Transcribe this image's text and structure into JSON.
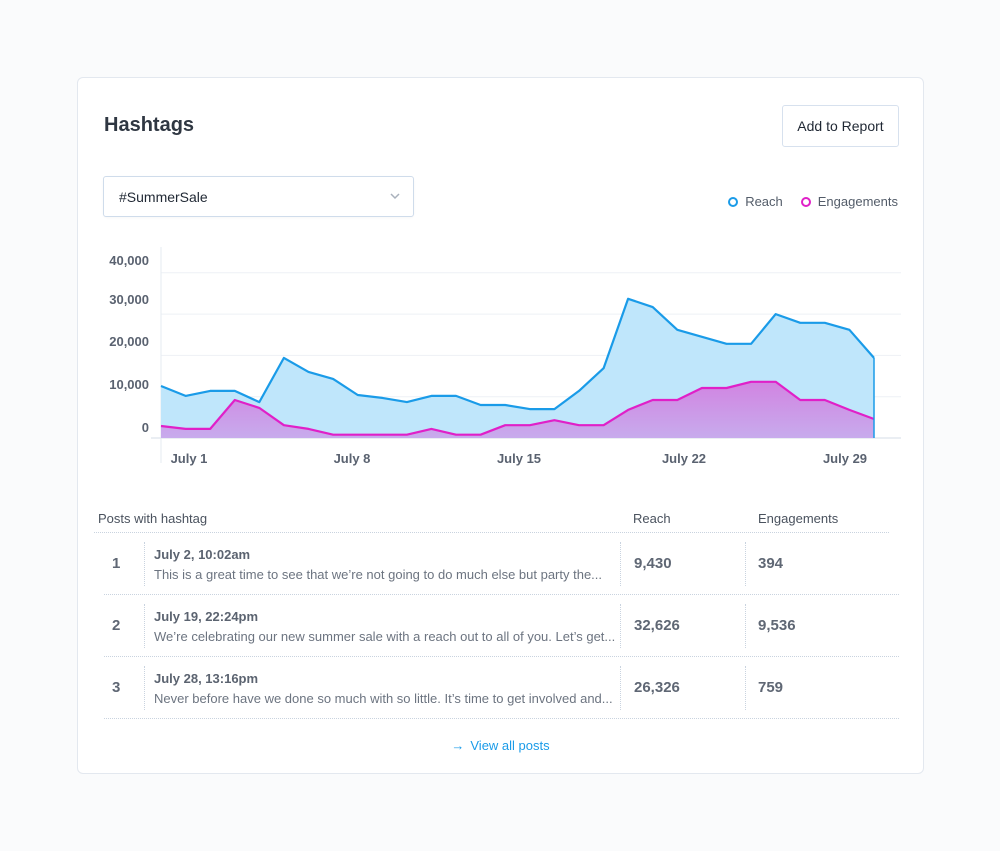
{
  "header": {
    "title": "Hashtags",
    "add_button": "Add to Report"
  },
  "hashtag_select": {
    "value": "#SummerSale",
    "icon": "chevron-down-icon"
  },
  "legend": [
    {
      "label": "Reach",
      "color": "#1a9be8"
    },
    {
      "label": "Engagements",
      "color": "#e020c8"
    }
  ],
  "chart_data": {
    "type": "area",
    "title": "",
    "xlabel": "",
    "ylabel": "",
    "ylim": [
      0,
      40000
    ],
    "y_ticks": [
      "40,000",
      "30,000",
      "20,000",
      "10,000",
      "0"
    ],
    "x_ticks": [
      "July 1",
      "July 8",
      "July 15",
      "July 22",
      "July 29"
    ],
    "grid": true,
    "legend_position": "top-right",
    "x": [
      "Jul 1",
      "Jul 2",
      "Jul 3",
      "Jul 4",
      "Jul 5",
      "Jul 6",
      "Jul 7",
      "Jul 8",
      "Jul 9",
      "Jul 10",
      "Jul 11",
      "Jul 12",
      "Jul 13",
      "Jul 14",
      "Jul 15",
      "Jul 16",
      "Jul 17",
      "Jul 18",
      "Jul 19",
      "Jul 20",
      "Jul 21",
      "Jul 22",
      "Jul 23",
      "Jul 24",
      "Jul 25",
      "Jul 26",
      "Jul 27",
      "Jul 28",
      "Jul 29",
      "Jul 30"
    ],
    "series": [
      {
        "name": "Reach",
        "color": "#1a9be8",
        "fill": "#bfe6fb",
        "values": [
          12600,
          10200,
          11400,
          11400,
          8700,
          19400,
          16000,
          14300,
          10400,
          9700,
          8700,
          10200,
          10200,
          8000,
          8000,
          7000,
          7000,
          11400,
          16900,
          33700,
          31700,
          26200,
          24500,
          22800,
          22800,
          30000,
          27900,
          27900,
          26200,
          19400
        ]
      },
      {
        "name": "Engagements",
        "color": "#e020c8",
        "fill": "#cf97e6",
        "values": [
          2900,
          2200,
          2200,
          9200,
          7300,
          3100,
          2200,
          800,
          800,
          800,
          800,
          2200,
          800,
          800,
          3100,
          3100,
          4300,
          3100,
          3100,
          6800,
          9200,
          9200,
          12100,
          12100,
          13600,
          13600,
          9200,
          9200,
          6800,
          4600
        ]
      }
    ]
  },
  "posts_table": {
    "headers": {
      "post": "Posts with hashtag",
      "reach": "Reach",
      "engagements": "Engagements"
    },
    "rows": [
      {
        "index": "1",
        "date": "July 2, 10:02am",
        "text": "This is a great time to see that we’re not going to do much else but party the...",
        "reach": "9,430",
        "engagements": "394"
      },
      {
        "index": "2",
        "date": "July 19, 22:24pm",
        "text": "We’re celebrating our new summer sale with a reach out to all of you. Let’s get...",
        "reach": "32,626",
        "engagements": "9,536"
      },
      {
        "index": "3",
        "date": "July 28, 13:16pm",
        "text": "Never before have we done so much with so little. It’s time to get involved and...",
        "reach": "26,326",
        "engagements": "759"
      }
    ]
  },
  "footer": {
    "view_all": "View all posts",
    "arrow": "→"
  }
}
